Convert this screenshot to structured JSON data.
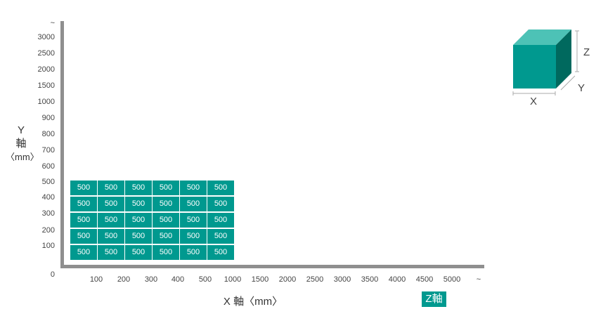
{
  "chart_data": {
    "type": "table",
    "y_axis": {
      "label_lines": [
        "Y",
        "軸",
        "〈mm〉"
      ],
      "ticks": [
        "~",
        "3000",
        "2500",
        "2000",
        "1500",
        "1000",
        "900",
        "800",
        "700",
        "600",
        "500",
        "400",
        "300",
        "200",
        "100",
        "0"
      ]
    },
    "x_axis": {
      "label": "X 軸〈mm〉",
      "ticks": [
        "100",
        "200",
        "300",
        "400",
        "500",
        "1000",
        "1500",
        "2000",
        "2500",
        "3000",
        "3500",
        "4000",
        "4500",
        "5000",
        "~"
      ]
    },
    "z_label": "Z軸",
    "grid": {
      "rows": 5,
      "cols": 6,
      "values": [
        [
          "500",
          "500",
          "500",
          "500",
          "500",
          "500"
        ],
        [
          "500",
          "500",
          "500",
          "500",
          "500",
          "500"
        ],
        [
          "500",
          "500",
          "500",
          "500",
          "500",
          "500"
        ],
        [
          "500",
          "500",
          "500",
          "500",
          "500",
          "500"
        ],
        [
          "500",
          "500",
          "500",
          "500",
          "500",
          "500"
        ]
      ]
    },
    "cube_labels": {
      "x": "X",
      "y": "Y",
      "z": "Z"
    },
    "colors": {
      "cell": "#00998f",
      "cube_front": "#00998f",
      "cube_top": "#4dc2b6",
      "cube_side": "#00695e",
      "axis": "#8f8f8f"
    }
  }
}
